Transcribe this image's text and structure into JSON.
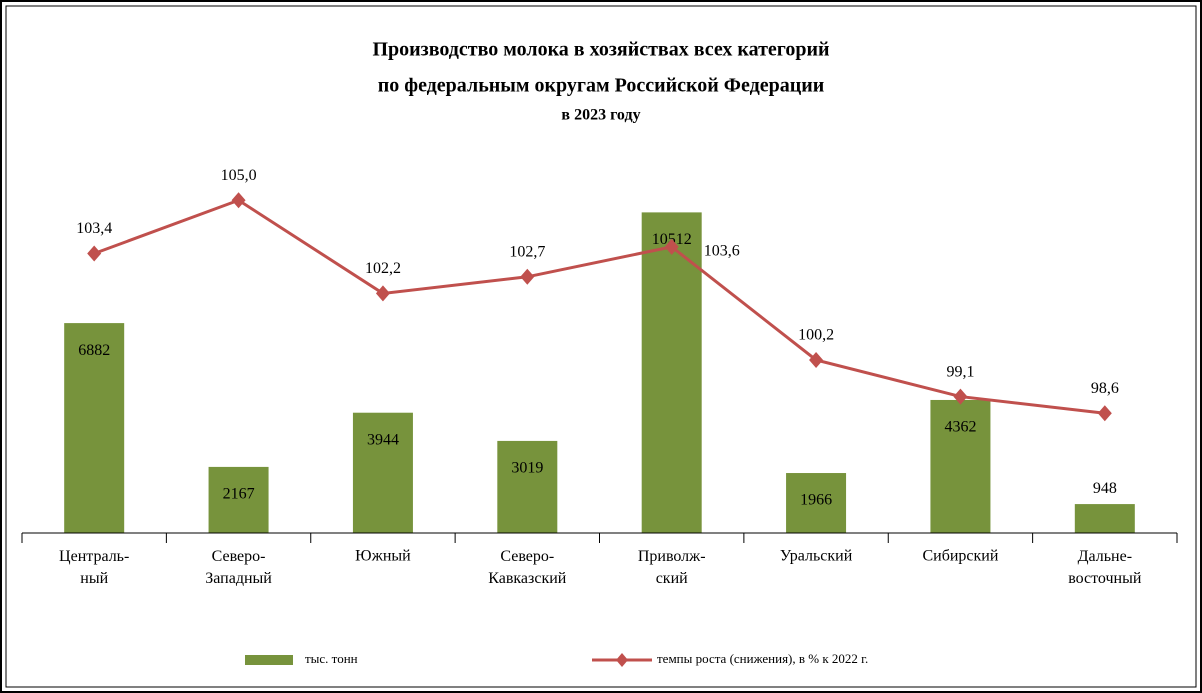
{
  "chart_data": {
    "type": "bar_line",
    "title": [
      "Производство  молока в хозяйствах  всех категорий",
      "по федеральным  округам  Российской  Федерации",
      "в  2023  году"
    ],
    "categories": [
      "Централь-\nный",
      "Северо-\nЗападный",
      "Южный",
      "Северо-\nКавказский",
      "Приволж-\nский",
      "Уральский",
      "Сибирский",
      "Дальне-\nвосточный"
    ],
    "series": [
      {
        "name": "тыс. тонн",
        "color": "#77933c",
        "type": "bar",
        "values": [
          6882,
          2167,
          3944,
          3019,
          10512,
          1966,
          4362,
          948
        ]
      },
      {
        "name": "темпы роста (снижения), в % к 2022 г.",
        "color": "#c0504d",
        "type": "line",
        "axis": "y2",
        "values": [
          103.4,
          105.0,
          102.2,
          102.7,
          103.6,
          100.2,
          99.1,
          98.6
        ],
        "value_labels": [
          "103,4",
          "105,0",
          "102,2",
          "102,7",
          "103,6",
          "100,2",
          "99,1",
          "98,6"
        ]
      }
    ],
    "ylim": [
      0,
      12000
    ],
    "y2lim": [
      95,
      106
    ],
    "legend": "bottom"
  }
}
